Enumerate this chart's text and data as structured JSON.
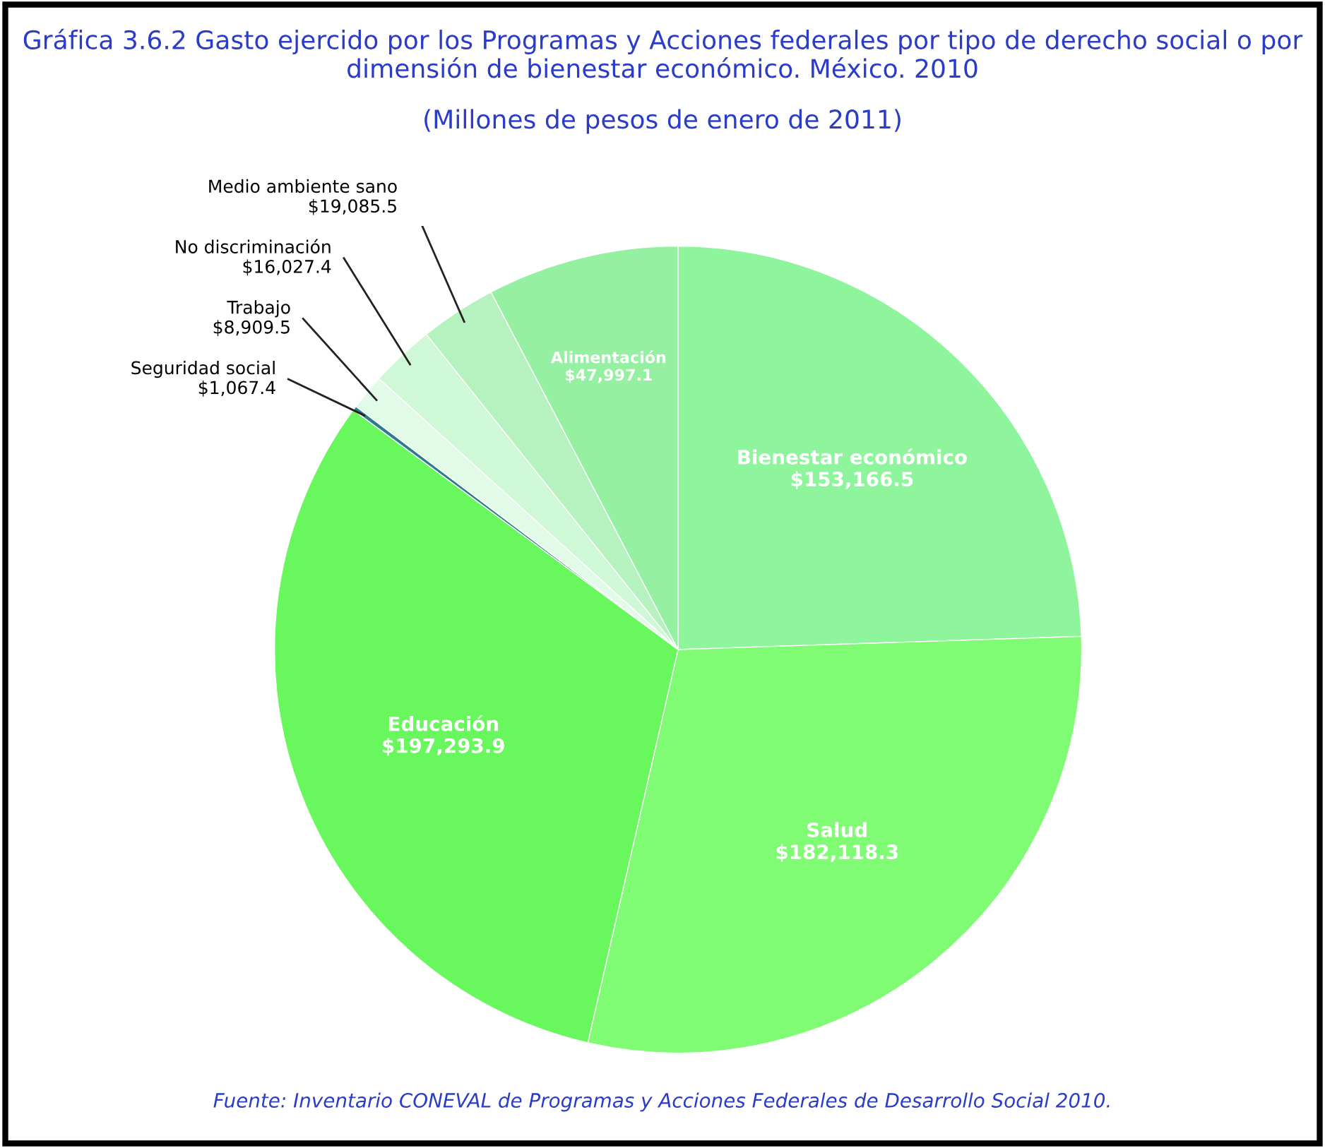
{
  "chart_data": {
    "type": "pie",
    "title": "Gráfica 3.6.2 Gasto ejercido por los Programas y Acciones federales por tipo de derecho social o por dimensión de bienestar económico. México. 2010",
    "subtitle": "(Millones de pesos de enero de 2011)",
    "annotations": [
      "Fuente: Inventario CONEVAL de Programas y Acciones Federales de Desarrollo Social 2010."
    ],
    "categories": [
      "Bienestar económico",
      "Salud",
      "Educación",
      "Seguridad social",
      "Trabajo",
      "No discriminación",
      "Medio ambiente sano",
      "Alimentación"
    ],
    "values": [
      153166.5,
      182118.3,
      197293.9,
      1067.4,
      8909.5,
      16027.4,
      19085.5,
      47997.1
    ],
    "value_labels": [
      "$153,166.5",
      "$182,118.3",
      "$197,293.9",
      "$1,067.4",
      "$8,909.5",
      "$16,027.4",
      "$19,085.5",
      "$47,997.1"
    ],
    "colors": [
      "#8ff59c",
      "#80fb74",
      "#68f75c",
      "#2b7d8c",
      "#e2fbe8",
      "#cff8d6",
      "#b5f2bf",
      "#96f0a2"
    ]
  }
}
